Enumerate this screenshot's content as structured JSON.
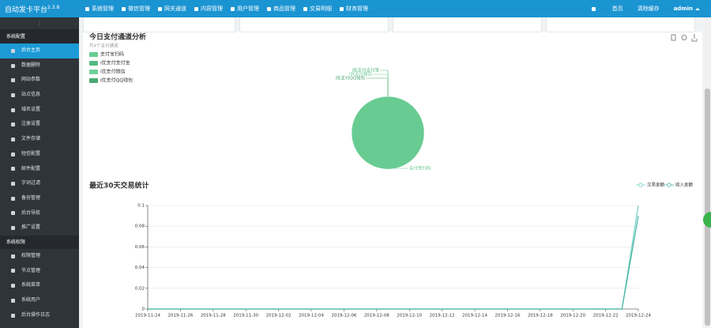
{
  "header": {
    "brand": "自动发卡平台",
    "version": "2.3.8",
    "nav": [
      "系统管理",
      "微信管理",
      "网关通道",
      "内容管理",
      "用户管理",
      "商品管理",
      "交易明细",
      "财务管理"
    ],
    "links": [
      "首页",
      "清除缓存"
    ],
    "user": "admin"
  },
  "sidebar": {
    "groups": [
      {
        "title": "系统配置",
        "items": [
          "后台主页",
          "数据删除",
          "网站参数",
          "站点信息",
          "域名设置",
          "注册设置",
          "文件存储",
          "短信配置",
          "邮件配置",
          "字词过滤",
          "备份管理",
          "后台导航",
          "推广设置"
        ]
      },
      {
        "title": "系统权限",
        "items": [
          "权限管理",
          "节点管理",
          "系统菜单",
          "系统用户",
          "后台操作日志"
        ]
      }
    ]
  },
  "chart_data": [
    {
      "type": "pie",
      "title": "今日支付通道分析",
      "subtitle": "共4个支付通道",
      "categories": [
        "支付宝扫码",
        "i优支付支付宝",
        "i优支付微信",
        "i优支付QQ钱包"
      ],
      "values": [
        100,
        0,
        0,
        0
      ],
      "colors": [
        "#68cc92",
        "#56b981",
        "#6fd09a",
        "#4aa874"
      ]
    },
    {
      "type": "line",
      "title": "最近30天交易统计",
      "categories": [
        "2019-11-24",
        null,
        "2019-11-26",
        null,
        "2019-11-28",
        null,
        "2019-11-30",
        null,
        "2019-12-02",
        null,
        "2019-12-04",
        null,
        "2019-12-06",
        null,
        "2019-12-08",
        null,
        "2019-12-10",
        null,
        "2019-12-12",
        null,
        "2019-12-14",
        null,
        "2019-12-16",
        null,
        "2019-12-18",
        null,
        "2019-12-20",
        null,
        "2019-12-22",
        null,
        "2019-12-24"
      ],
      "series": [
        {
          "name": "交易金额",
          "color": "#6fd0c6",
          "values": [
            0,
            0,
            0,
            0,
            0,
            0,
            0,
            0,
            0,
            0,
            0,
            0,
            0,
            0,
            0,
            0,
            0,
            0,
            0,
            0,
            0,
            0,
            0,
            0,
            0,
            0,
            0,
            0,
            0,
            0,
            0.1
          ]
        },
        {
          "name": "收入金额",
          "color": "#4db4a4",
          "values": [
            0,
            0,
            0,
            0,
            0,
            0,
            0,
            0,
            0,
            0,
            0,
            0,
            0,
            0,
            0,
            0,
            0,
            0,
            0,
            0,
            0,
            0,
            0,
            0,
            0,
            0,
            0,
            0,
            0,
            0,
            0.09
          ]
        }
      ],
      "ylim": [
        0,
        0.1
      ],
      "yticks": [
        0,
        0.02,
        0.04,
        0.06,
        0.08,
        0.1
      ],
      "grid": true,
      "legend": "top-right"
    }
  ]
}
